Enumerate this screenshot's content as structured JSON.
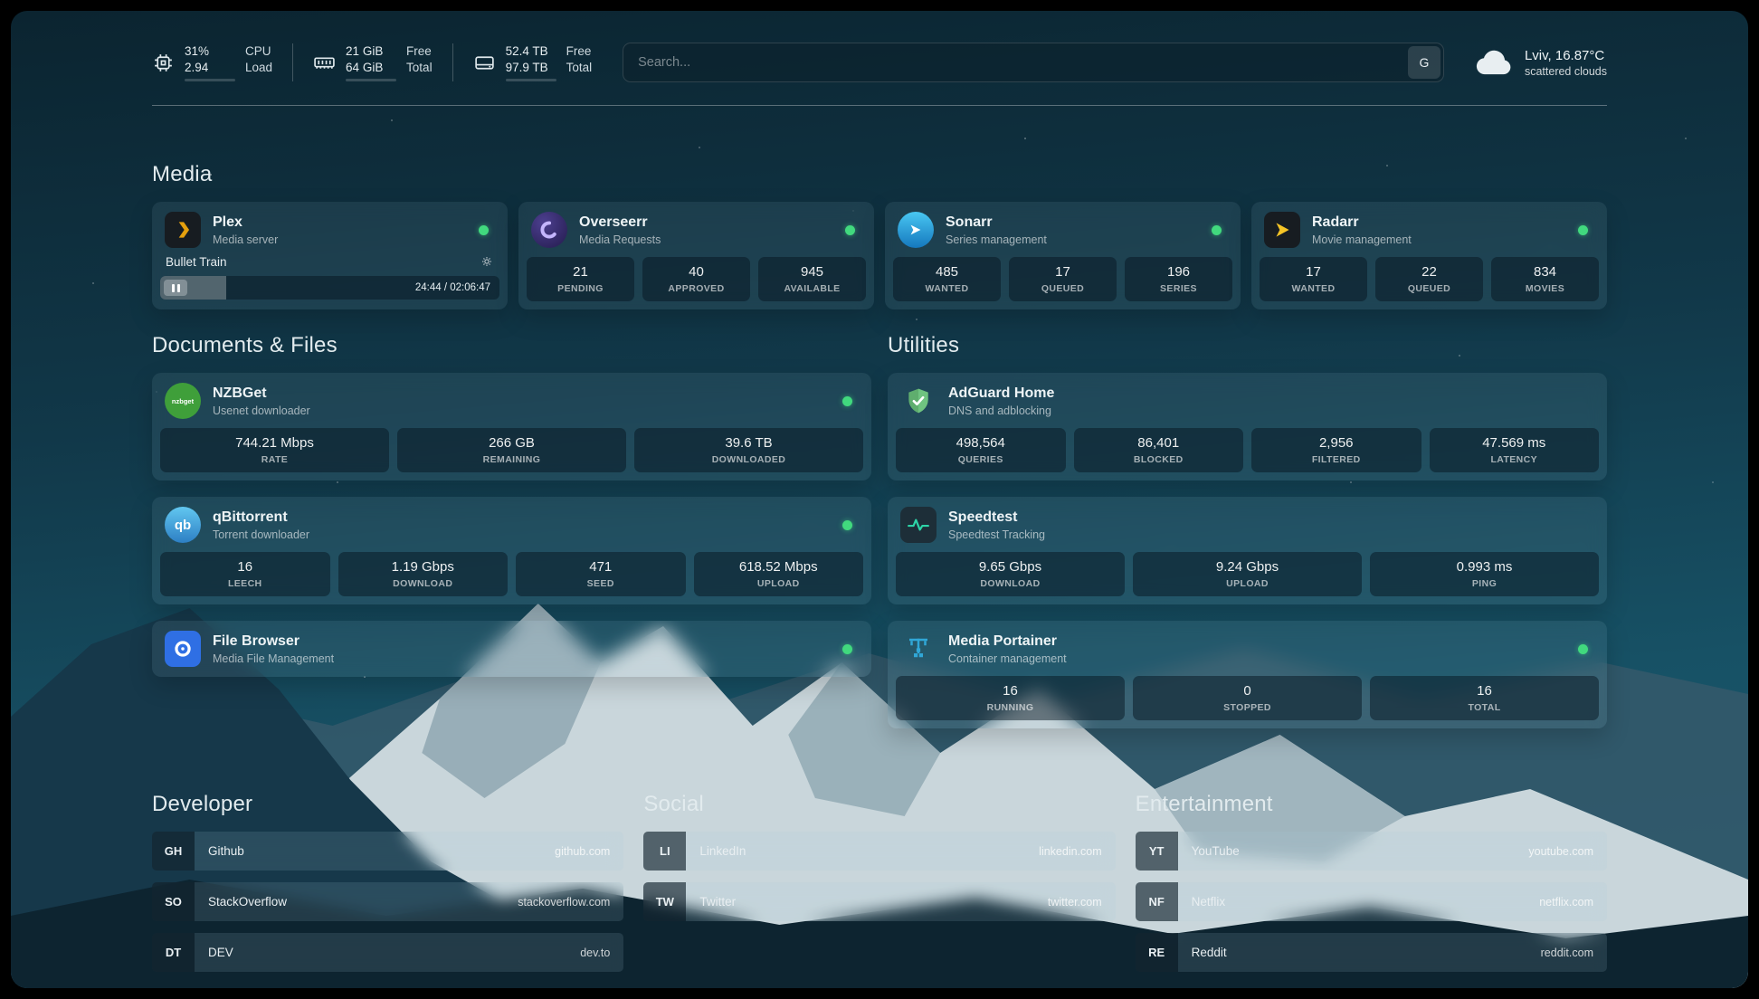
{
  "colors": {
    "status_online": "#41d97e",
    "plex_amber": "#e5a00d",
    "radarr_amber": "#f5c426",
    "speedtest_green": "#2dd4a7",
    "portainer_blue": "#30a7d7"
  },
  "topbar": {
    "cpu": {
      "value_top": "31%",
      "value_bottom": "2.94",
      "label_top": "CPU",
      "label_bottom": "Load",
      "used_percent": 31
    },
    "memory": {
      "value_top": "21 GiB",
      "value_bottom": "64 GiB",
      "label_top": "Free",
      "label_bottom": "Total",
      "used_percent": 67
    },
    "disk": {
      "value_top": "52.4 TB",
      "value_bottom": "97.9 TB",
      "label_top": "Free",
      "label_bottom": "Total",
      "used_percent": 47
    },
    "search": {
      "placeholder": "Search...",
      "provider_button": "G"
    },
    "weather": {
      "location": "Lviv, 16.87°C",
      "condition": "scattered clouds"
    }
  },
  "media": {
    "heading": "Media",
    "plex": {
      "name": "Plex",
      "subtitle": "Media server",
      "now_playing": "Bullet Train",
      "time": "24:44 / 02:06:47",
      "progress_percent": 19.5
    },
    "overseerr": {
      "name": "Overseerr",
      "subtitle": "Media Requests",
      "stats": [
        {
          "value": "21",
          "label": "PENDING"
        },
        {
          "value": "40",
          "label": "APPROVED"
        },
        {
          "value": "945",
          "label": "AVAILABLE"
        }
      ]
    },
    "sonarr": {
      "name": "Sonarr",
      "subtitle": "Series management",
      "stats": [
        {
          "value": "485",
          "label": "WANTED"
        },
        {
          "value": "17",
          "label": "QUEUED"
        },
        {
          "value": "196",
          "label": "SERIES"
        }
      ]
    },
    "radarr": {
      "name": "Radarr",
      "subtitle": "Movie management",
      "stats": [
        {
          "value": "17",
          "label": "WANTED"
        },
        {
          "value": "22",
          "label": "QUEUED"
        },
        {
          "value": "834",
          "label": "MOVIES"
        }
      ]
    }
  },
  "documents": {
    "heading": "Documents & Files",
    "nzbget": {
      "name": "NZBGet",
      "subtitle": "Usenet downloader",
      "stats": [
        {
          "value": "744.21 Mbps",
          "label": "RATE"
        },
        {
          "value": "266 GB",
          "label": "REMAINING"
        },
        {
          "value": "39.6 TB",
          "label": "DOWNLOADED"
        }
      ]
    },
    "qbittorrent": {
      "name": "qBittorrent",
      "subtitle": "Torrent downloader",
      "stats": [
        {
          "value": "16",
          "label": "LEECH"
        },
        {
          "value": "1.19 Gbps",
          "label": "DOWNLOAD"
        },
        {
          "value": "471",
          "label": "SEED"
        },
        {
          "value": "618.52 Mbps",
          "label": "UPLOAD"
        }
      ]
    },
    "filebrowser": {
      "name": "File Browser",
      "subtitle": "Media File Management"
    }
  },
  "utilities": {
    "heading": "Utilities",
    "adguard": {
      "name": "AdGuard Home",
      "subtitle": "DNS and adblocking",
      "stats": [
        {
          "value": "498,564",
          "label": "QUERIES"
        },
        {
          "value": "86,401",
          "label": "BLOCKED"
        },
        {
          "value": "2,956",
          "label": "FILTERED"
        },
        {
          "value": "47.569 ms",
          "label": "LATENCY"
        }
      ]
    },
    "speedtest": {
      "name": "Speedtest",
      "subtitle": "Speedtest Tracking",
      "stats": [
        {
          "value": "9.65 Gbps",
          "label": "DOWNLOAD"
        },
        {
          "value": "9.24 Gbps",
          "label": "UPLOAD"
        },
        {
          "value": "0.993 ms",
          "label": "PING"
        }
      ]
    },
    "portainer": {
      "name": "Media Portainer",
      "subtitle": "Container management",
      "stats": [
        {
          "value": "16",
          "label": "RUNNING"
        },
        {
          "value": "0",
          "label": "STOPPED"
        },
        {
          "value": "16",
          "label": "TOTAL"
        }
      ]
    }
  },
  "bookmarks": {
    "developer": {
      "heading": "Developer",
      "items": [
        {
          "abbr": "GH",
          "name": "Github",
          "url": "github.com"
        },
        {
          "abbr": "SO",
          "name": "StackOverflow",
          "url": "stackoverflow.com"
        },
        {
          "abbr": "DT",
          "name": "DEV",
          "url": "dev.to"
        }
      ]
    },
    "social": {
      "heading": "Social",
      "items": [
        {
          "abbr": "LI",
          "name": "LinkedIn",
          "url": "linkedin.com"
        },
        {
          "abbr": "TW",
          "name": "Twitter",
          "url": "twitter.com"
        }
      ]
    },
    "entertainment": {
      "heading": "Entertainment",
      "items": [
        {
          "abbr": "YT",
          "name": "YouTube",
          "url": "youtube.com"
        },
        {
          "abbr": "NF",
          "name": "Netflix",
          "url": "netflix.com"
        },
        {
          "abbr": "RE",
          "name": "Reddit",
          "url": "reddit.com"
        }
      ]
    }
  }
}
